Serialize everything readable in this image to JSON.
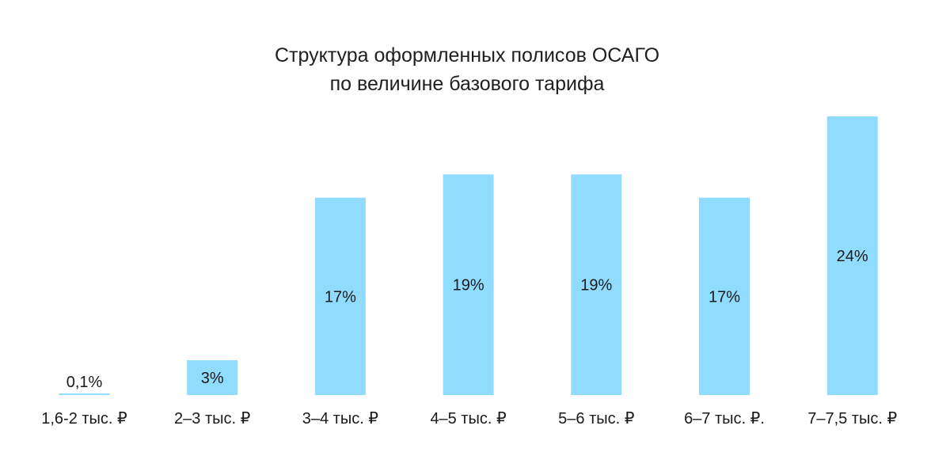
{
  "chart_data": {
    "type": "bar",
    "title_lines": [
      "Структура оформленных полисов ОСАГО",
      "по величине базового тарифа"
    ],
    "categories": [
      "1,6-2 тыс. ₽",
      "2–3 тыс. ₽",
      "3–4 тыс. ₽",
      "4–5 тыс. ₽",
      "5–6 тыс. ₽",
      "6–7 тыс. ₽.",
      "7–7,5 тыс. ₽"
    ],
    "values": [
      0.1,
      3,
      17,
      19,
      19,
      17,
      24
    ],
    "data_labels": [
      "0,1%",
      "3%",
      "17%",
      "19%",
      "19%",
      "17%",
      "24%"
    ],
    "xlabel": "",
    "ylabel": "",
    "ylim": [
      0,
      24
    ],
    "grid": false,
    "bar_color": "#8fdcff"
  }
}
